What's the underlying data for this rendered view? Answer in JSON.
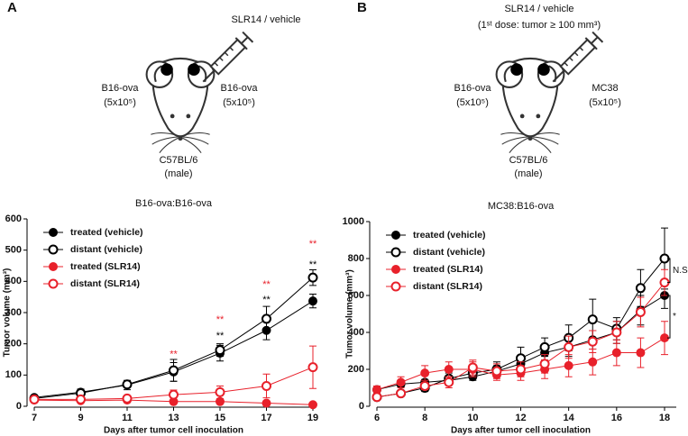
{
  "panel_labels": [
    "A",
    "B"
  ],
  "diagrams": [
    {
      "injection": [
        "SLR14 / vehicle"
      ],
      "left_tumor": [
        "B16-ova",
        "(5x10⁵)"
      ],
      "right_tumor": [
        "B16-ova",
        "(5x10⁵)"
      ],
      "host": [
        "C57BL/6",
        "(male)"
      ]
    },
    {
      "injection": [
        "SLR14 / vehicle",
        "(1ˢᵗ dose: tumor ≥ 100 mm³)"
      ],
      "left_tumor": [
        "B16-ova",
        "(5x10⁵)"
      ],
      "right_tumor": [
        "MC38",
        "(5x10⁵)"
      ],
      "host": [
        "C57BL/6",
        "(male)"
      ]
    }
  ],
  "chart_data": [
    {
      "type": "line",
      "title": "B16-ova:B16-ova",
      "x_label": "Days after tumor cell inoculation",
      "y_label": "Tumor volume (mm³)",
      "x": [
        7,
        9,
        11,
        13,
        15,
        17,
        19
      ],
      "xlim": [
        7,
        19
      ],
      "xticks": [
        7,
        9,
        11,
        13,
        15,
        17,
        19
      ],
      "ylim": [
        0,
        600
      ],
      "yticks": [
        0,
        100,
        200,
        300,
        400,
        500,
        600
      ],
      "legend": "upper left",
      "series": [
        {
          "name": "treated (vehicle)",
          "color": "#000000",
          "marker": "filled",
          "values": [
            28,
            45,
            68,
            110,
            170,
            243,
            337
          ],
          "errors": [
            8,
            10,
            15,
            30,
            25,
            30,
            22
          ]
        },
        {
          "name": "distant (vehicle)",
          "color": "#000000",
          "marker": "open",
          "values": [
            25,
            42,
            70,
            115,
            180,
            280,
            412
          ],
          "errors": [
            5,
            8,
            10,
            35,
            20,
            40,
            25
          ]
        },
        {
          "name": "treated (SLR14)",
          "color": "#e8212b",
          "marker": "filled",
          "values": [
            20,
            18,
            20,
            15,
            15,
            10,
            5
          ],
          "errors": [
            3,
            3,
            5,
            5,
            5,
            5,
            3
          ]
        },
        {
          "name": "distant (SLR14)",
          "color": "#e8212b",
          "marker": "open",
          "values": [
            22,
            22,
            25,
            37,
            45,
            65,
            125
          ],
          "errors": [
            5,
            5,
            8,
            15,
            20,
            38,
            68
          ]
        }
      ],
      "annotations": [
        {
          "text": "**",
          "x": 13,
          "y": 165,
          "color": "#e8212b"
        },
        {
          "text": "**",
          "x": 15,
          "y": 277,
          "color": "#e8212b"
        },
        {
          "text": "**",
          "x": 15,
          "y": 225,
          "color": "#000000"
        },
        {
          "text": "**",
          "x": 17,
          "y": 389,
          "color": "#e8212b"
        },
        {
          "text": "**",
          "x": 17,
          "y": 340,
          "color": "#000000"
        },
        {
          "text": "**",
          "x": 19,
          "y": 519,
          "color": "#e8212b"
        },
        {
          "text": "**",
          "x": 19,
          "y": 452,
          "color": "#000000"
        }
      ]
    },
    {
      "type": "line",
      "title": "MC38:B16-ova",
      "x_label": "Days after tumor cell inoculation",
      "y_label": "Tumor volume (mm³)",
      "x": [
        6,
        7,
        8,
        9,
        10,
        11,
        12,
        13,
        14,
        15,
        16,
        17,
        18
      ],
      "xlim": [
        6,
        18
      ],
      "xticks": [
        6,
        8,
        10,
        12,
        14,
        16,
        18
      ],
      "ylim": [
        0,
        1000
      ],
      "yticks": [
        0,
        200,
        400,
        600,
        800,
        1000
      ],
      "legend": "upper left",
      "series": [
        {
          "name": "treated (vehicle)",
          "color": "#000000",
          "marker": "filled",
          "values": [
            90,
            120,
            130,
            140,
            160,
            190,
            230,
            290,
            320,
            360,
            400,
            520,
            600
          ],
          "errors": [
            10,
            15,
            15,
            20,
            20,
            30,
            40,
            40,
            50,
            50,
            60,
            80,
            70
          ]
        },
        {
          "name": "distant (vehicle)",
          "color": "#000000",
          "marker": "open",
          "values": [
            50,
            70,
            100,
            150,
            180,
            200,
            260,
            320,
            370,
            470,
            420,
            640,
            800
          ],
          "errors": [
            10,
            10,
            20,
            30,
            30,
            40,
            60,
            50,
            70,
            110,
            60,
            100,
            165
          ]
        },
        {
          "name": "treated (SLR14)",
          "color": "#e8212b",
          "marker": "filled",
          "values": [
            90,
            130,
            180,
            200,
            200,
            170,
            180,
            200,
            220,
            240,
            290,
            290,
            370
          ],
          "errors": [
            20,
            30,
            40,
            40,
            40,
            30,
            40,
            50,
            60,
            70,
            70,
            80,
            90
          ]
        },
        {
          "name": "distant (SLR14)",
          "color": "#e8212b",
          "marker": "open",
          "values": [
            50,
            70,
            110,
            130,
            210,
            190,
            200,
            230,
            320,
            350,
            400,
            510,
            670
          ],
          "errors": [
            10,
            10,
            20,
            30,
            40,
            40,
            40,
            50,
            60,
            60,
            60,
            80,
            70
          ]
        }
      ],
      "annotations": [
        {
          "text": "N.S."
        },
        {
          "text": "*"
        }
      ]
    }
  ]
}
